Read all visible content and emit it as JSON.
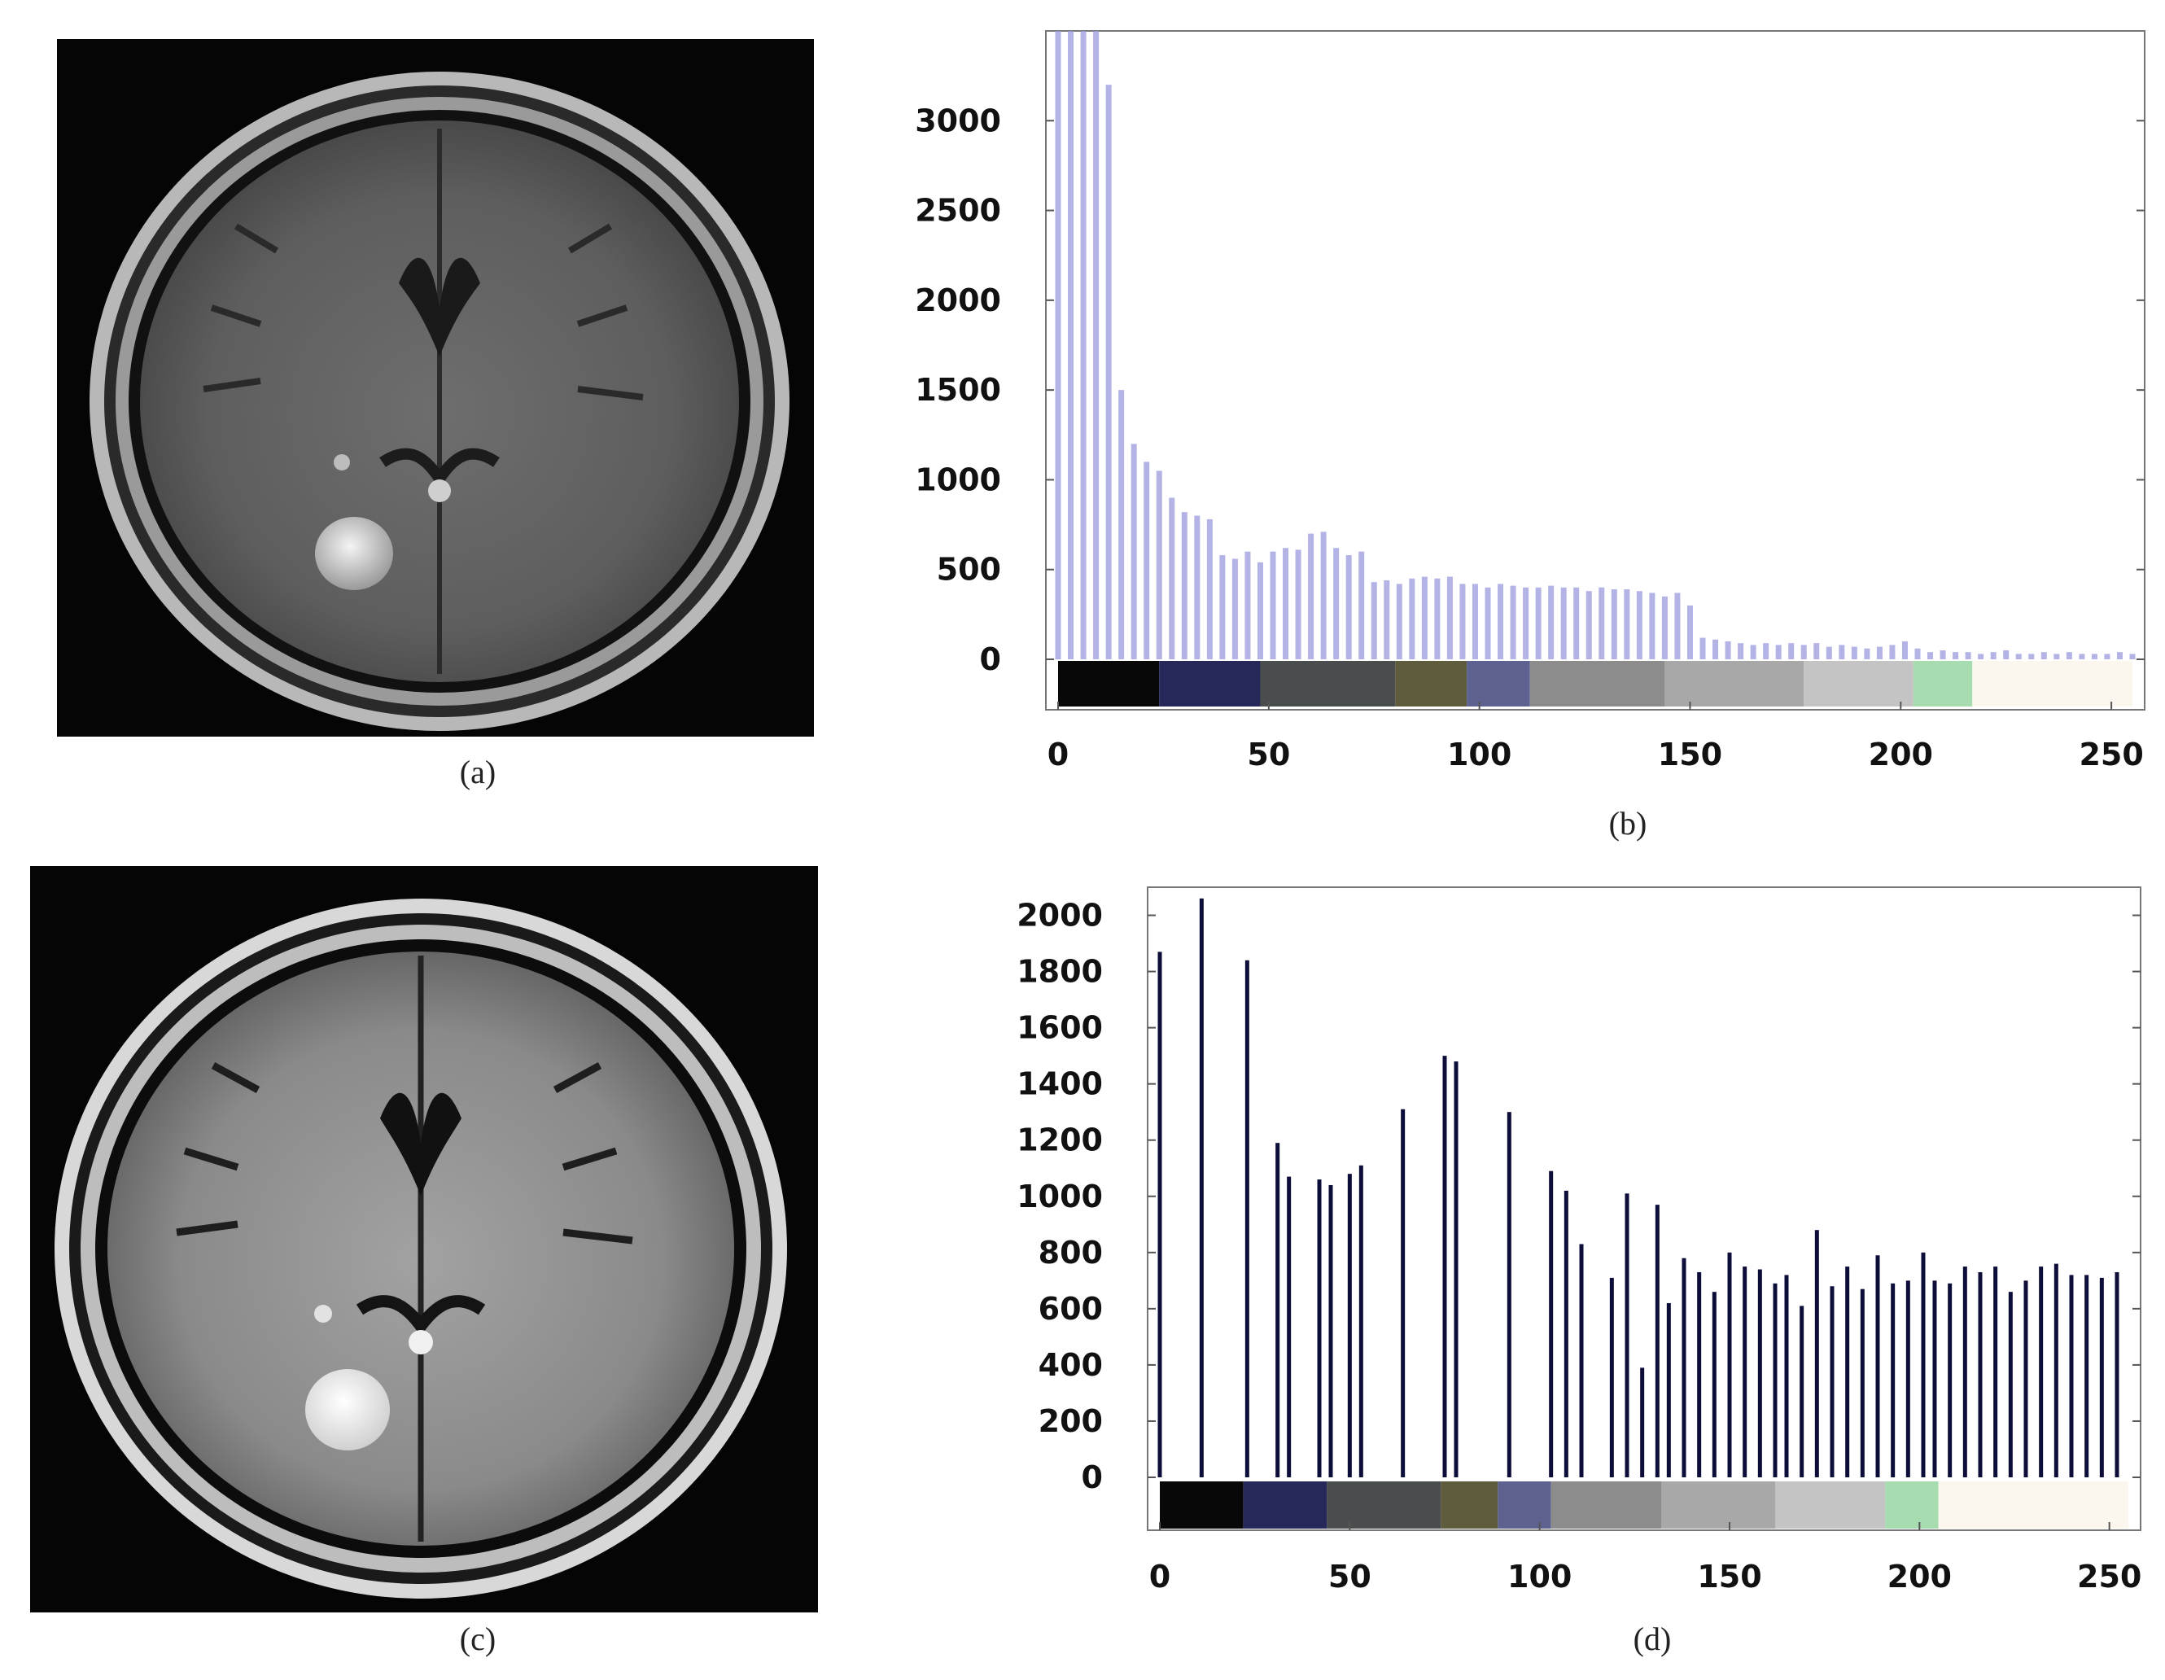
{
  "captions": {
    "a": "(a)",
    "b": "(b)",
    "c": "(c)",
    "d": "(d)"
  },
  "chart_data": [
    {
      "id": "b",
      "type": "bar",
      "xlim": [
        0,
        255
      ],
      "ylim": [
        0,
        3500
      ],
      "yticks": [
        0,
        500,
        1000,
        1500,
        2000,
        2500,
        3000
      ],
      "xticks": [
        0,
        50,
        100,
        150,
        200,
        250
      ],
      "bar_color": "#9999dd",
      "colorbar": [
        {
          "from": 0,
          "to": 24,
          "color": "#080808"
        },
        {
          "from": 24,
          "to": 48,
          "color": "#26285a"
        },
        {
          "from": 48,
          "to": 80,
          "color": "#4a4d4d"
        },
        {
          "from": 80,
          "to": 97,
          "color": "#5f5c3e"
        },
        {
          "from": 97,
          "to": 112,
          "color": "#5d6290"
        },
        {
          "from": 112,
          "to": 144,
          "color": "#8c8c8c"
        },
        {
          "from": 144,
          "to": 177,
          "color": "#a8a8a8"
        },
        {
          "from": 177,
          "to": 203,
          "color": "#c4c4c4"
        },
        {
          "from": 203,
          "to": 217,
          "color": "#a6dcb0"
        },
        {
          "from": 217,
          "to": 255,
          "color": "#fbf7ee"
        }
      ],
      "x": [
        0,
        3,
        6,
        9,
        12,
        15,
        18,
        21,
        24,
        27,
        30,
        33,
        36,
        39,
        42,
        45,
        48,
        51,
        54,
        57,
        60,
        63,
        66,
        69,
        72,
        75,
        78,
        81,
        84,
        87,
        90,
        93,
        96,
        99,
        102,
        105,
        108,
        111,
        114,
        117,
        120,
        123,
        126,
        129,
        132,
        135,
        138,
        141,
        144,
        147,
        150,
        153,
        156,
        159,
        162,
        165,
        168,
        171,
        174,
        177,
        180,
        183,
        186,
        189,
        192,
        195,
        198,
        201,
        204,
        207,
        210,
        213,
        216,
        219,
        222,
        225,
        228,
        231,
        234,
        237,
        240,
        243,
        246,
        249,
        252,
        255
      ],
      "values": [
        3500,
        3500,
        3500,
        3500,
        3200,
        1500,
        1200,
        1100,
        1050,
        900,
        820,
        800,
        780,
        580,
        560,
        600,
        540,
        600,
        620,
        610,
        700,
        710,
        620,
        580,
        600,
        430,
        440,
        420,
        450,
        460,
        450,
        460,
        420,
        420,
        400,
        420,
        410,
        400,
        400,
        410,
        400,
        400,
        380,
        400,
        390,
        390,
        380,
        370,
        350,
        370,
        300,
        120,
        110,
        100,
        90,
        80,
        90,
        80,
        90,
        80,
        90,
        70,
        80,
        70,
        60,
        70,
        80,
        100,
        60,
        40,
        50,
        40,
        40,
        30,
        40,
        50,
        30,
        30,
        40,
        30,
        40,
        30,
        30,
        30,
        40,
        30
      ]
    },
    {
      "id": "d",
      "type": "bar",
      "xlim": [
        0,
        255
      ],
      "ylim": [
        0,
        2100
      ],
      "yticks": [
        0,
        200,
        400,
        600,
        800,
        1000,
        1200,
        1400,
        1600,
        1800,
        2000
      ],
      "xticks": [
        0,
        50,
        100,
        150,
        200,
        250
      ],
      "bar_color": "#0d0d3a",
      "colorbar": [
        {
          "from": 0,
          "to": 22,
          "color": "#080808"
        },
        {
          "from": 22,
          "to": 44,
          "color": "#26285a"
        },
        {
          "from": 44,
          "to": 74,
          "color": "#4a4d4d"
        },
        {
          "from": 74,
          "to": 89,
          "color": "#5f5c3e"
        },
        {
          "from": 89,
          "to": 103,
          "color": "#5d6290"
        },
        {
          "from": 103,
          "to": 132,
          "color": "#8c8c8c"
        },
        {
          "from": 132,
          "to": 162,
          "color": "#a8a8a8"
        },
        {
          "from": 162,
          "to": 191,
          "color": "#c4c4c4"
        },
        {
          "from": 191,
          "to": 205,
          "color": "#a6dcb0"
        },
        {
          "from": 205,
          "to": 255,
          "color": "#fbf7ee"
        }
      ],
      "x": [
        0,
        11,
        23,
        31,
        34,
        42,
        45,
        50,
        53,
        64,
        75,
        78,
        92,
        103,
        107,
        111,
        119,
        123,
        127,
        131,
        134,
        138,
        142,
        146,
        150,
        154,
        158,
        162,
        165,
        169,
        173,
        177,
        181,
        185,
        189,
        193,
        197,
        201,
        204,
        208,
        212,
        216,
        220,
        224,
        228,
        232,
        236,
        240,
        244,
        248,
        252
      ],
      "values": [
        1870,
        2060,
        1840,
        1190,
        1070,
        1060,
        1040,
        1080,
        1110,
        1310,
        1500,
        1480,
        1300,
        1090,
        1020,
        830,
        710,
        1010,
        390,
        970,
        620,
        780,
        730,
        660,
        800,
        750,
        740,
        690,
        720,
        610,
        880,
        680,
        750,
        670,
        790,
        690,
        700,
        800,
        700,
        690,
        750,
        730,
        750,
        660,
        700,
        750,
        760,
        720,
        720,
        710,
        730
      ]
    }
  ]
}
